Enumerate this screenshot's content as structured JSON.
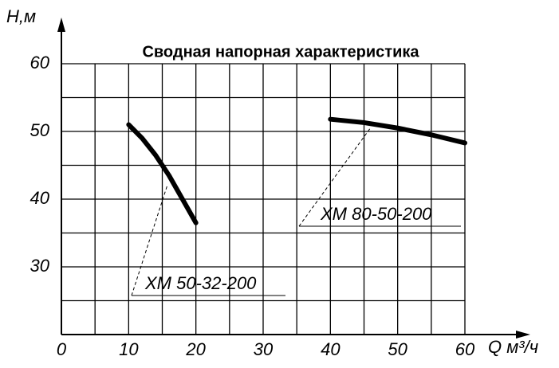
{
  "chart_data": {
    "type": "line",
    "title": "Сводная напорная характеристика",
    "y_label": "Н,м",
    "x_label": "Q м³/ч",
    "xlim": [
      0,
      60
    ],
    "ylim": [
      20,
      60
    ],
    "xticks": [
      0,
      10,
      20,
      30,
      40,
      50,
      60
    ],
    "yticks": [
      30,
      40,
      50,
      60
    ],
    "x_minor_ticks": [
      5,
      15,
      25,
      35,
      45,
      55
    ],
    "y_minor_ticks": [
      25,
      35,
      45,
      55
    ],
    "grid": true,
    "series": [
      {
        "name": "ХМ 50-32-200",
        "color": "#000000",
        "x": [
          10,
          12,
          14,
          16,
          18,
          20
        ],
        "values": [
          51,
          49,
          46.5,
          43.5,
          40,
          36.5
        ]
      },
      {
        "name": "ХМ 80-50-200",
        "color": "#000000",
        "x": [
          40,
          45,
          50,
          55,
          60
        ],
        "values": [
          51.8,
          51.3,
          50.5,
          49.5,
          48.3
        ]
      }
    ]
  }
}
